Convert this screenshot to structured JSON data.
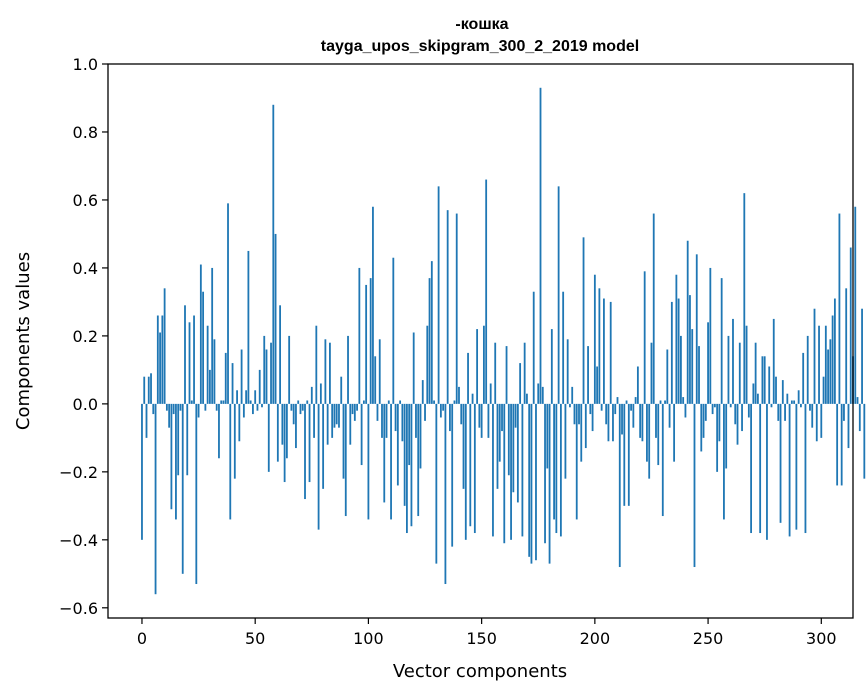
{
  "chart_data": {
    "type": "bar",
    "title": "-кошка",
    "subtitle": "tayga_upos_skipgram_300_2_2019 model",
    "xlabel": "Vector components",
    "ylabel": "Components values",
    "xlim": [
      -15,
      314
    ],
    "ylim": [
      -0.63,
      1.0
    ],
    "xticks": [
      0,
      50,
      100,
      150,
      200,
      250,
      300
    ],
    "yticks": [
      -0.6,
      -0.4,
      -0.2,
      0.0,
      0.2,
      0.4,
      0.6,
      0.8,
      1.0
    ],
    "ytick_labels": [
      "−0.6",
      "−0.4",
      "−0.2",
      "0.0",
      "0.2",
      "0.4",
      "0.6",
      "0.8",
      "1.0"
    ],
    "grid": false,
    "color": "#1f77b4",
    "values": [
      -0.4,
      0.08,
      -0.1,
      0.08,
      0.09,
      -0.03,
      -0.56,
      0.26,
      0.21,
      0.26,
      0.34,
      -0.02,
      -0.07,
      -0.31,
      -0.03,
      -0.34,
      -0.21,
      -0.02,
      -0.5,
      0.29,
      -0.21,
      0.24,
      0.01,
      0.26,
      -0.53,
      -0.04,
      0.41,
      0.33,
      -0.02,
      0.23,
      0.1,
      0.4,
      0.19,
      -0.02,
      -0.16,
      0.01,
      0.01,
      0.15,
      0.59,
      -0.34,
      0.12,
      -0.22,
      0.04,
      -0.11,
      0.16,
      -0.04,
      0.04,
      0.45,
      0.01,
      -0.03,
      0.04,
      -0.02,
      0.1,
      -0.01,
      0.2,
      0.16,
      -0.2,
      0.18,
      0.88,
      0.5,
      -0.17,
      0.29,
      -0.12,
      -0.23,
      -0.16,
      0.2,
      -0.02,
      -0.06,
      -0.13,
      0.01,
      -0.03,
      -0.02,
      -0.28,
      0.01,
      -0.23,
      0.05,
      -0.1,
      0.23,
      -0.37,
      0.06,
      -0.25,
      0.19,
      -0.12,
      0.18,
      -0.1,
      -0.07,
      -0.06,
      -0.07,
      0.08,
      -0.22,
      -0.33,
      0.2,
      -0.12,
      -0.03,
      -0.05,
      -0.02,
      0.4,
      -0.18,
      0.01,
      0.35,
      -0.34,
      0.37,
      0.58,
      0.14,
      -0.05,
      0.19,
      -0.1,
      -0.29,
      -0.1,
      0.01,
      -0.34,
      0.43,
      -0.08,
      -0.24,
      0.01,
      -0.11,
      -0.3,
      -0.38,
      -0.18,
      -0.36,
      0.21,
      -0.1,
      -0.33,
      -0.19,
      0.07,
      -0.05,
      0.23,
      0.37,
      0.42,
      0.01,
      -0.47,
      0.64,
      -0.04,
      -0.02,
      -0.53,
      0.57,
      -0.08,
      -0.42,
      0.01,
      0.56,
      0.05,
      -0.06,
      -0.25,
      -0.4,
      0.15,
      -0.36,
      0.03,
      -0.38,
      0.22,
      -0.07,
      -0.1,
      0.23,
      0.66,
      -0.1,
      0.06,
      -0.39,
      0.18,
      -0.25,
      -0.17,
      -0.08,
      -0.41,
      0.17,
      -0.21,
      -0.4,
      -0.26,
      -0.07,
      -0.29,
      0.12,
      -0.39,
      0.18,
      0.03,
      -0.45,
      -0.47,
      0.33,
      -0.46,
      0.06,
      0.93,
      0.05,
      -0.41,
      -0.19,
      -0.47,
      0.22,
      -0.34,
      -0.38,
      0.64,
      -0.39,
      0.33,
      -0.22,
      0.19,
      -0.01,
      0.05,
      -0.06,
      -0.34,
      -0.06,
      -0.17,
      0.49,
      -0.13,
      0.17,
      -0.03,
      -0.08,
      0.38,
      0.11,
      0.34,
      -0.02,
      0.31,
      -0.06,
      -0.11,
      0.3,
      -0.11,
      -0.03,
      0.02,
      -0.48,
      -0.09,
      -0.3,
      0.01,
      -0.3,
      -0.02,
      -0.07,
      0.02,
      0.11,
      -0.1,
      -0.11,
      0.39,
      -0.17,
      -0.22,
      0.18,
      0.56,
      -0.1,
      -0.18,
      0.01,
      -0.33,
      0.01,
      0.16,
      -0.07,
      0.3,
      -0.17,
      0.38,
      0.31,
      0.2,
      0.02,
      -0.04,
      0.48,
      0.32,
      0.22,
      -0.48,
      0.44,
      0.17,
      -0.14,
      -0.1,
      -0.05,
      0.24,
      0.4,
      -0.03,
      -0.01,
      -0.2,
      -0.11,
      0.37,
      -0.34,
      -0.19,
      0.2,
      -0.01,
      0.25,
      -0.06,
      -0.12,
      0.18,
      -0.08,
      0.62,
      0.23,
      -0.04,
      -0.38,
      0.06,
      0.18,
      0.03,
      -0.38,
      0.14,
      0.14,
      -0.4,
      0.11,
      -0.01,
      0.25,
      0.08,
      -0.05,
      -0.35,
      0.07,
      -0.05,
      0.03,
      -0.39,
      0.01,
      0.01,
      -0.37,
      0.04,
      -0.01,
      0.15,
      -0.38,
      0.2,
      -0.02,
      -0.07,
      0.28,
      -0.11,
      0.23,
      -0.1,
      0.08,
      0.23,
      0.16,
      0.19,
      0.26,
      0.31,
      -0.24,
      0.56,
      -0.24,
      -0.05,
      0.34,
      -0.13,
      0.46,
      0.14,
      0.58,
      0.02,
      -0.08,
      0.28,
      -0.22
    ]
  }
}
